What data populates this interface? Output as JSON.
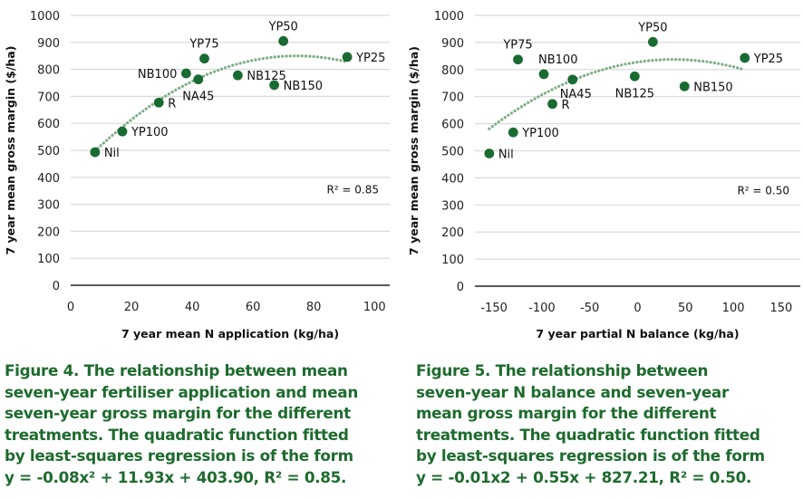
{
  "chart_data": [
    {
      "type": "scatter",
      "title": "",
      "xlabel": "7 year mean N application (kg/ha)",
      "ylabel": "7 year mean gross margin ($/ha)",
      "xlim": [
        0,
        105
      ],
      "ylim": [
        0,
        1000
      ],
      "xticks": [
        "0",
        "20",
        "40",
        "60",
        "80",
        "100"
      ],
      "yticks": [
        "0",
        "100",
        "200",
        "300",
        "400",
        "500",
        "600",
        "700",
        "800",
        "900",
        "1000"
      ],
      "grid": true,
      "trendline": "quadratic (dotted)",
      "r2_label": "R² = 0.85",
      "points": [
        {
          "label": "Nil",
          "x": 8,
          "y": 493,
          "label_pos": "right"
        },
        {
          "label": "YP100",
          "x": 17,
          "y": 570,
          "label_pos": "right"
        },
        {
          "label": "R",
          "x": 29,
          "y": 677,
          "label_pos": "right"
        },
        {
          "label": "NB100",
          "x": 38,
          "y": 785,
          "label_pos": "left"
        },
        {
          "label": "NA45",
          "x": 42,
          "y": 763,
          "label_pos": "below"
        },
        {
          "label": "YP75",
          "x": 44,
          "y": 840,
          "label_pos": "above"
        },
        {
          "label": "NB125",
          "x": 55,
          "y": 778,
          "label_pos": "right"
        },
        {
          "label": "NB150",
          "x": 67,
          "y": 742,
          "label_pos": "right"
        },
        {
          "label": "YP50",
          "x": 70,
          "y": 905,
          "label_pos": "above"
        },
        {
          "label": "YP25",
          "x": 91,
          "y": 846,
          "label_pos": "right"
        }
      ]
    },
    {
      "type": "scatter",
      "title": "",
      "xlabel": "7 year partial N balance (kg/ha)",
      "ylabel": "7 year mean gross margin ($/ha)",
      "xlim": [
        -170,
        170
      ],
      "ylim": [
        0,
        1000
      ],
      "xticks": [
        "-150",
        "-100",
        "-50",
        "0",
        "50",
        "100",
        "150"
      ],
      "yticks": [
        "0",
        "100",
        "200",
        "300",
        "400",
        "500",
        "600",
        "700",
        "800",
        "900",
        "1000"
      ],
      "grid": true,
      "trendline": "quadratic (dotted)",
      "r2_label": "R² = 0.50",
      "points": [
        {
          "label": "Nil",
          "x": -155,
          "y": 490,
          "label_pos": "right"
        },
        {
          "label": "YP100",
          "x": -130,
          "y": 568,
          "label_pos": "right"
        },
        {
          "label": "YP75",
          "x": -125,
          "y": 837,
          "label_pos": "above"
        },
        {
          "label": "NB100",
          "x": -98,
          "y": 783,
          "label_pos": "above-right"
        },
        {
          "label": "R",
          "x": -89,
          "y": 673,
          "label_pos": "right"
        },
        {
          "label": "NA45",
          "x": -68,
          "y": 763,
          "label_pos": "below-right"
        },
        {
          "label": "NB125",
          "x": -3,
          "y": 775,
          "label_pos": "below"
        },
        {
          "label": "YP50",
          "x": 16,
          "y": 902,
          "label_pos": "above"
        },
        {
          "label": "NB150",
          "x": 49,
          "y": 738,
          "label_pos": "right"
        },
        {
          "label": "YP25",
          "x": 112,
          "y": 843,
          "label_pos": "right"
        }
      ]
    }
  ],
  "captions": {
    "figure4": [
      "Figure 4. The relationship between mean",
      "seven-year fertiliser application and mean",
      "seven-year gross margin for the different",
      "treatments. The quadratic function fitted",
      "by least-squares regression is of the form",
      "y = -0.08x² + 11.93x + 403.90, R² = 0.85."
    ],
    "figure5": [
      "Figure 5. The relationship between",
      "seven-year N balance and seven-year",
      "mean gross margin for the different",
      "treatments. The quadratic function fitted",
      "by least-squares regression is of the form",
      "y = -0.01x2 + 0.55x + 827.21, R² = 0.50."
    ]
  },
  "colors": {
    "point": "#1a6b32",
    "trend": "#7fae85",
    "grid": "#d9d9d9",
    "axis": "#222222",
    "caption": "#1e6b2e"
  }
}
